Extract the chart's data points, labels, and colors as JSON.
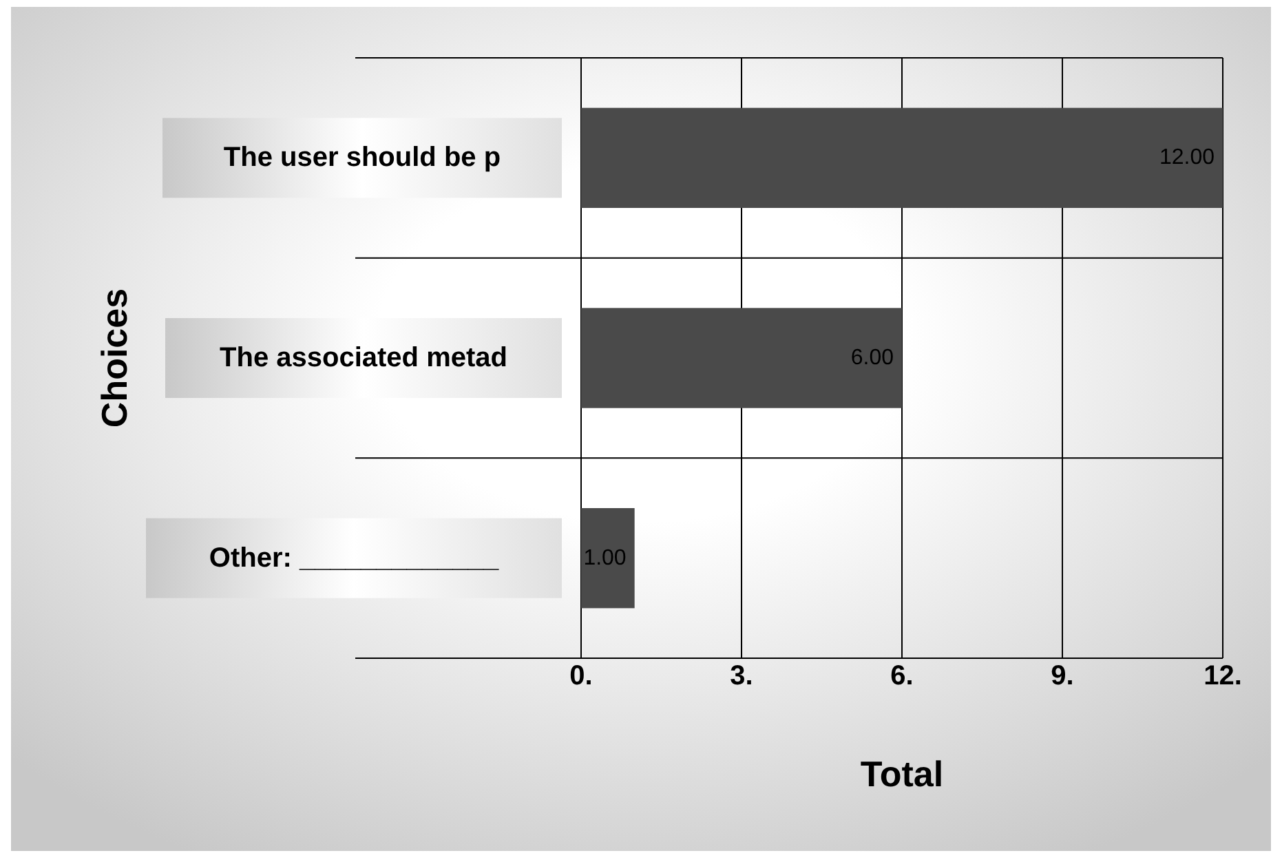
{
  "chart_data": {
    "type": "bar",
    "orientation": "horizontal",
    "xlabel": "Total",
    "ylabel": "Choices",
    "categories": [
      "The user should be p",
      "The associated metad",
      "Other: _____________"
    ],
    "values": [
      12,
      6,
      1
    ],
    "color": "#4a4a4a",
    "value_labels": [
      "12.00",
      "6.00",
      "1.00"
    ],
    "xlim": [
      0,
      12
    ],
    "xticks": [
      {
        "value": 0,
        "label": "0."
      },
      {
        "value": 3,
        "label": "3."
      },
      {
        "value": 6,
        "label": "6."
      },
      {
        "value": 9,
        "label": "9."
      },
      {
        "value": 12,
        "label": "12."
      }
    ],
    "grid": "x"
  }
}
